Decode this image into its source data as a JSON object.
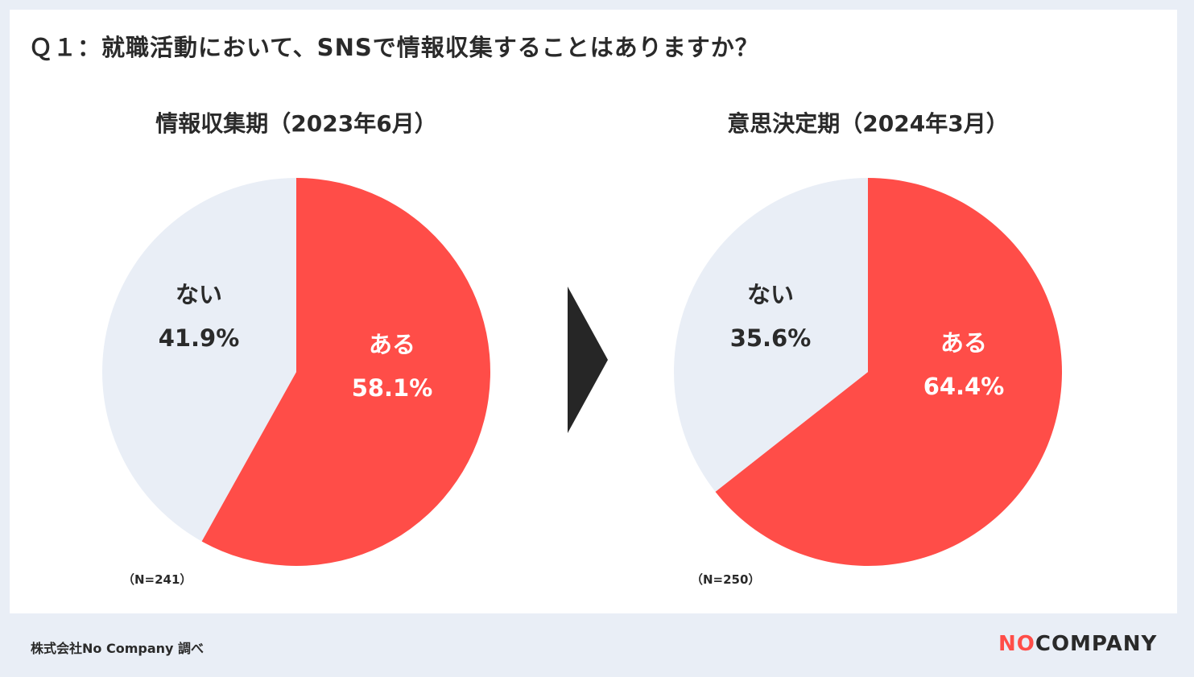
{
  "question": "Ｑ１：就職活動において、SNSで情報収集することはありますか？",
  "colors": {
    "yes": "#ff4d48",
    "no": "#e9eef6",
    "text_dark": "#2a2a2a",
    "text_light": "#ffffff"
  },
  "chart_data": [
    {
      "type": "pie",
      "title": "情報収集期（2023年6月）",
      "n_note": "（N=241）",
      "slices": [
        {
          "label": "ある",
          "value": 58.1,
          "value_text": "58.1%"
        },
        {
          "label": "ない",
          "value": 41.9,
          "value_text": "41.9%"
        }
      ]
    },
    {
      "type": "pie",
      "title": "意思決定期（2024年3月）",
      "n_note": "（N=250）",
      "slices": [
        {
          "label": "ある",
          "value": 64.4,
          "value_text": "64.4%"
        },
        {
          "label": "ない",
          "value": 35.6,
          "value_text": "35.6%"
        }
      ]
    }
  ],
  "arrow_icon": "chevron-right-icon",
  "footer": {
    "source": "株式会社No Company 調べ",
    "logo_no": "NO",
    "logo_company": "COMPANY"
  }
}
